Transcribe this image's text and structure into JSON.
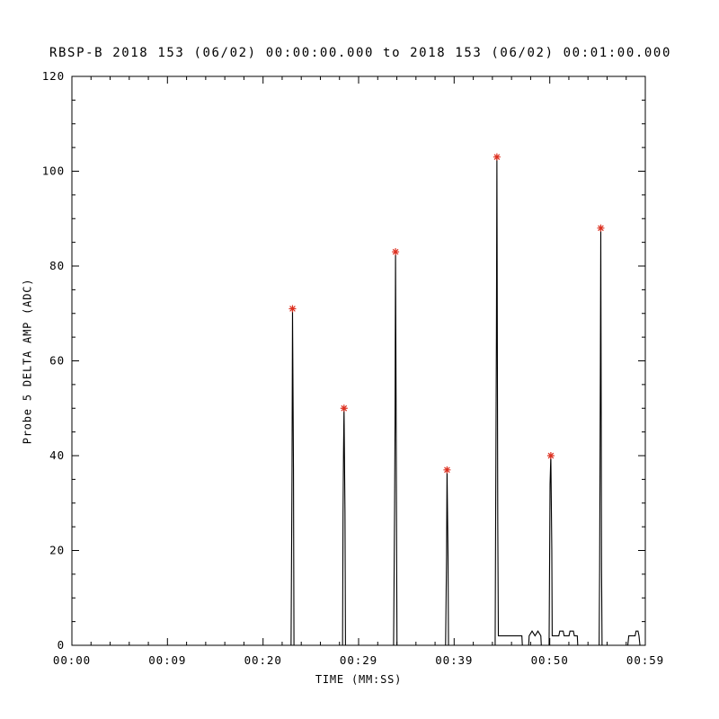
{
  "chart_data": {
    "type": "line",
    "title": "RBSP-B 2018 153 (06/02) 00:00:00.000 to 2018 153 (06/02) 00:01:00.000",
    "xlabel": "TIME (MM:SS)",
    "ylabel": "Probe 5 DELTA AMP (ADC)",
    "xlim": [
      0,
      59
    ],
    "ylim": [
      0,
      120
    ],
    "x_ticks": [
      {
        "t": 0.0,
        "label": "00:00"
      },
      {
        "t": 9.83,
        "label": "00:09"
      },
      {
        "t": 19.67,
        "label": "00:20"
      },
      {
        "t": 29.5,
        "label": "00:29"
      },
      {
        "t": 39.33,
        "label": "00:39"
      },
      {
        "t": 49.17,
        "label": "00:50"
      },
      {
        "t": 59.0,
        "label": "00:59"
      }
    ],
    "y_ticks": [
      0,
      20,
      40,
      60,
      80,
      100,
      120
    ],
    "x_minor_step": 1.9667,
    "y_minor_step": 5,
    "grid": false,
    "legend": "none",
    "background_color": "#ffffff",
    "axis_color": "#000000",
    "line_color": "#000000",
    "marker_color": "#dd3020",
    "marker_style": "asterisk",
    "series": [
      {
        "name": "Probe 5 DELTA AMP",
        "points": [
          [
            0,
            0
          ],
          [
            22.55,
            0
          ],
          [
            22.65,
            37
          ],
          [
            22.7,
            71
          ],
          [
            22.8,
            37
          ],
          [
            22.85,
            0
          ],
          [
            27.85,
            0
          ],
          [
            27.9,
            28
          ],
          [
            27.95,
            41
          ],
          [
            28.0,
            50
          ],
          [
            28.1,
            28
          ],
          [
            28.15,
            0
          ],
          [
            33.1,
            0
          ],
          [
            33.2,
            28
          ],
          [
            33.25,
            47
          ],
          [
            33.3,
            83
          ],
          [
            33.4,
            28
          ],
          [
            33.45,
            0
          ],
          [
            38.45,
            0
          ],
          [
            38.55,
            19
          ],
          [
            38.6,
            37
          ],
          [
            38.7,
            19
          ],
          [
            38.75,
            0
          ],
          [
            43.55,
            0
          ],
          [
            43.6,
            26
          ],
          [
            43.68,
            65
          ],
          [
            43.73,
            103
          ],
          [
            43.82,
            26
          ],
          [
            43.88,
            2
          ],
          [
            46.3,
            2
          ],
          [
            46.35,
            0
          ],
          [
            47.0,
            0
          ],
          [
            47.05,
            2
          ],
          [
            47.35,
            3
          ],
          [
            47.65,
            2
          ],
          [
            47.95,
            3
          ],
          [
            48.25,
            2
          ],
          [
            48.3,
            0
          ],
          [
            49.1,
            0
          ],
          [
            49.2,
            34
          ],
          [
            49.28,
            40
          ],
          [
            49.38,
            20
          ],
          [
            49.42,
            2
          ],
          [
            50.1,
            2
          ],
          [
            50.2,
            3
          ],
          [
            50.55,
            3
          ],
          [
            50.65,
            2
          ],
          [
            51.15,
            2
          ],
          [
            51.25,
            3
          ],
          [
            51.6,
            3
          ],
          [
            51.7,
            2
          ],
          [
            52.0,
            2
          ],
          [
            52.05,
            0
          ],
          [
            54.25,
            0
          ],
          [
            54.3,
            16
          ],
          [
            54.38,
            60
          ],
          [
            54.42,
            88
          ],
          [
            54.5,
            16
          ],
          [
            54.55,
            0
          ],
          [
            57.2,
            0
          ],
          [
            57.3,
            2
          ],
          [
            57.95,
            2
          ],
          [
            58.05,
            3
          ],
          [
            58.25,
            3
          ],
          [
            58.35,
            2
          ],
          [
            58.45,
            0
          ],
          [
            59,
            0
          ]
        ]
      }
    ],
    "peak_markers": [
      [
        22.7,
        71
      ],
      [
        28.0,
        50
      ],
      [
        33.3,
        83
      ],
      [
        38.6,
        37
      ],
      [
        43.73,
        103
      ],
      [
        49.28,
        40
      ],
      [
        54.42,
        88
      ]
    ]
  }
}
